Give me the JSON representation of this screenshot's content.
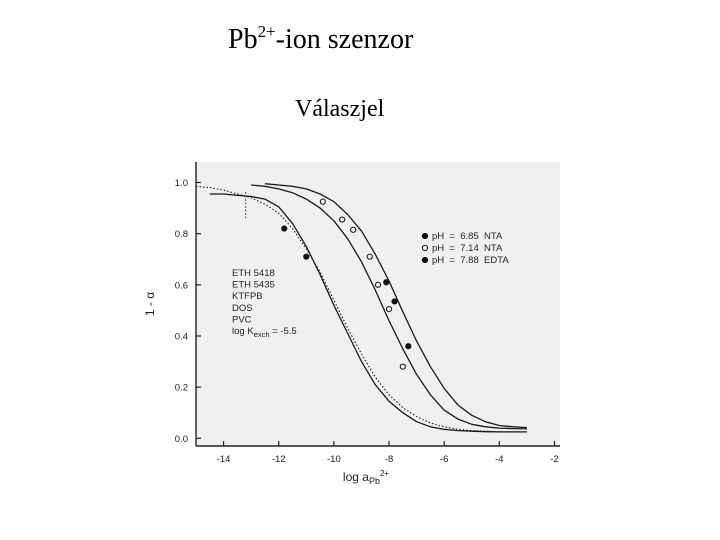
{
  "header": {
    "title_prefix": "Pb",
    "title_sup": "2+",
    "title_suffix": "-ion szenzor",
    "subtitle": "Válaszjel"
  },
  "chart_data": {
    "type": "scatter",
    "title": "",
    "xlabel_main": "log a",
    "xlabel_sub": "Pb",
    "xlabel_sup": "2+",
    "ylabel": "1 - α",
    "xlim": [
      -15,
      -1.8
    ],
    "ylim": [
      -0.03,
      1.08
    ],
    "x_ticks": [
      -14,
      -12,
      -10,
      -8,
      -6,
      -4,
      -2
    ],
    "y_ticks": [
      0.0,
      0.2,
      0.4,
      0.6,
      0.8,
      1.0
    ],
    "x_tick_labels": [
      "-14",
      "-12",
      "-10",
      "-8",
      "-6",
      "-4",
      "-2"
    ],
    "y_tick_labels": [
      "0.0",
      "0.2",
      "0.4",
      "0.6",
      "0.8",
      "1.0"
    ],
    "grid": false,
    "legend_position": "top-right",
    "legend": [
      {
        "marker": "filled",
        "label": "pH  =  6.85  NTA"
      },
      {
        "marker": "open",
        "label": "pH  =  7.14  NTA"
      },
      {
        "marker": "filled",
        "label": "pH  =  7.88  EDTA"
      }
    ],
    "membrane_lines": [
      "ETH 5418",
      "ETH 5435",
      "KTFPB",
      "DOS",
      "PVC"
    ],
    "kexch_label": {
      "prefix": "log K",
      "sub": "exch",
      "suffix": " = -5.5"
    },
    "curves": [
      {
        "style": "dotted",
        "x": [
          -15,
          -14.5,
          -14,
          -13.5,
          -13,
          -12.5,
          -12,
          -11.5,
          -11,
          -10.5,
          -10,
          -9.5,
          -9,
          -8.5,
          -8,
          -7.5,
          -7,
          -6.5,
          -6,
          -5.5,
          -5,
          -4.5,
          -4,
          -3.5,
          -3
        ],
        "y": [
          0.985,
          0.98,
          0.97,
          0.955,
          0.94,
          0.915,
          0.88,
          0.82,
          0.74,
          0.65,
          0.54,
          0.43,
          0.33,
          0.24,
          0.17,
          0.12,
          0.085,
          0.06,
          0.045,
          0.035,
          0.03,
          0.028,
          0.026,
          0.025,
          0.025
        ]
      },
      {
        "style": "solid",
        "x": [
          -14.5,
          -14,
          -13.5,
          -13,
          -12.5,
          -12,
          -11.5,
          -11,
          -10.5,
          -10,
          -9.5,
          -9,
          -8.5,
          -8,
          -7.5,
          -7,
          -6.5,
          -6,
          -5.5,
          -5,
          -4.5,
          -4,
          -3.5,
          -3
        ],
        "y": [
          0.955,
          0.955,
          0.95,
          0.945,
          0.935,
          0.905,
          0.84,
          0.75,
          0.64,
          0.52,
          0.41,
          0.3,
          0.21,
          0.145,
          0.1,
          0.065,
          0.045,
          0.035,
          0.03,
          0.028,
          0.026,
          0.025,
          0.025,
          0.025
        ]
      },
      {
        "style": "solid",
        "x": [
          -13,
          -12.5,
          -12,
          -11.5,
          -11,
          -10.5,
          -10,
          -9.5,
          -9,
          -8.5,
          -8,
          -7.5,
          -7,
          -6.5,
          -6,
          -5.5,
          -5,
          -4.5,
          -4,
          -3.5,
          -3
        ],
        "y": [
          0.99,
          0.985,
          0.975,
          0.96,
          0.935,
          0.9,
          0.85,
          0.78,
          0.69,
          0.58,
          0.46,
          0.35,
          0.25,
          0.17,
          0.11,
          0.075,
          0.055,
          0.045,
          0.04,
          0.038,
          0.037
        ]
      },
      {
        "style": "solid",
        "x": [
          -12.5,
          -12,
          -11.5,
          -11,
          -10.5,
          -10,
          -9.5,
          -9,
          -8.5,
          -8,
          -7.5,
          -7,
          -6.5,
          -6,
          -5.5,
          -5,
          -4.5,
          -4,
          -3.5,
          -3
        ],
        "y": [
          0.995,
          0.99,
          0.985,
          0.975,
          0.955,
          0.925,
          0.875,
          0.81,
          0.72,
          0.615,
          0.495,
          0.38,
          0.28,
          0.195,
          0.13,
          0.09,
          0.065,
          0.05,
          0.045,
          0.042
        ]
      }
    ],
    "series": [
      {
        "marker": "filled",
        "x": [
          -11.8,
          -11.0
        ],
        "y": [
          0.82,
          0.71
        ]
      },
      {
        "marker": "open",
        "x": [
          -10.4,
          -9.7,
          -9.3,
          -8.7,
          -8.4,
          -8.0,
          -7.5
        ],
        "y": [
          0.925,
          0.855,
          0.815,
          0.71,
          0.6,
          0.505,
          0.28
        ]
      },
      {
        "marker": "filled",
        "x": [
          -8.1,
          -7.8,
          -7.3
        ],
        "y": [
          0.61,
          0.535,
          0.36
        ]
      }
    ],
    "vline": {
      "style": "dotted",
      "x": -13.2,
      "y": [
        0.86,
        0.965
      ]
    }
  }
}
